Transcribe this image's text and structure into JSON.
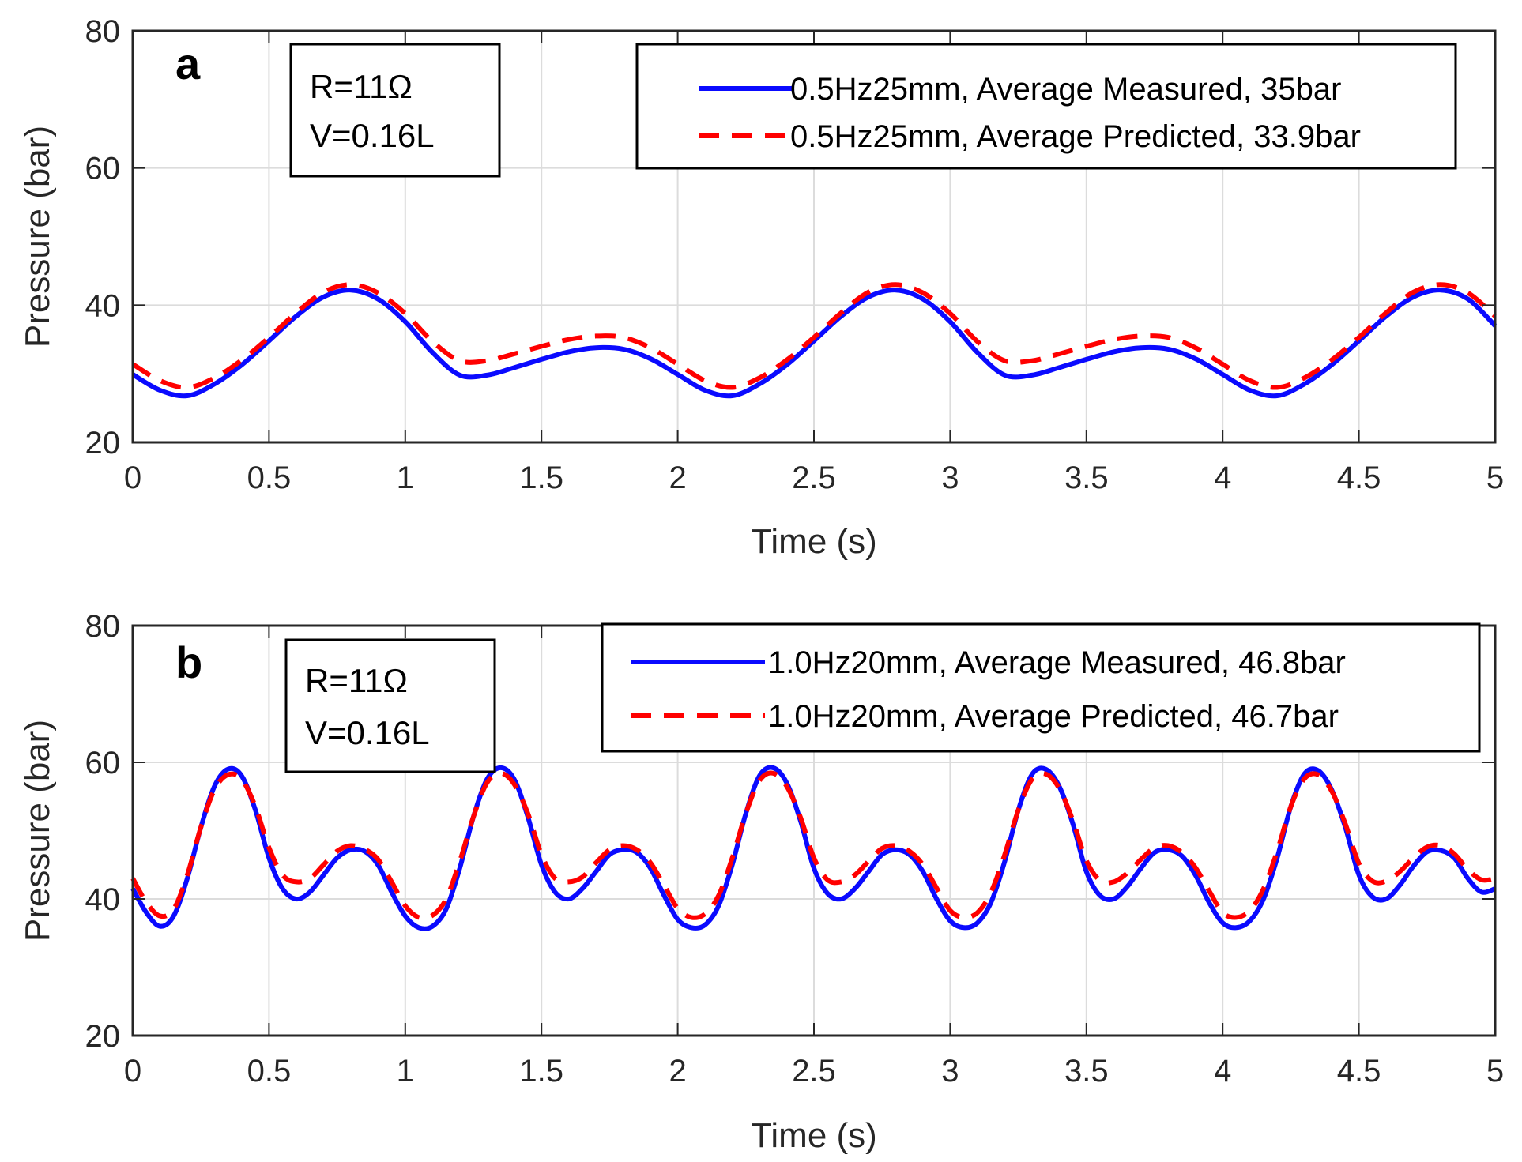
{
  "colors": {
    "measured": "#0a0aff",
    "predicted": "#ff0000",
    "grid": "#dcdcdc",
    "axis": "#262626"
  },
  "chart_data": [
    {
      "panel": "a",
      "type": "line",
      "xlabel": "Time (s)",
      "ylabel": "Pressure (bar)",
      "xlim": [
        0,
        5
      ],
      "ylim": [
        20,
        80
      ],
      "xticks": [
        "0",
        "0.5",
        "1",
        "1.5",
        "2",
        "2.5",
        "3",
        "3.5",
        "4",
        "4.5",
        "5"
      ],
      "yticks": [
        "20",
        "40",
        "60",
        "80"
      ],
      "grid": true,
      "legend_position": "top-right",
      "annotation": [
        "R=11Ω",
        "V=0.16L"
      ],
      "series": [
        {
          "name": "0.5Hz25mm, Average Measured, 35bar",
          "style": "solid",
          "x": [
            0,
            0.1,
            0.2,
            0.3,
            0.4,
            0.5,
            0.6,
            0.7,
            0.8,
            0.9,
            1.0,
            1.1,
            1.2,
            1.3,
            1.4,
            1.5,
            1.6,
            1.7,
            1.8,
            1.9,
            2.0,
            2.1,
            2.2,
            2.3,
            2.4,
            2.5,
            2.6,
            2.7,
            2.8,
            2.9,
            3.0,
            3.1,
            3.2,
            3.3,
            3.4,
            3.5,
            3.6,
            3.7,
            3.8,
            3.9,
            4.0,
            4.1,
            4.2,
            4.3,
            4.4,
            4.5,
            4.6,
            4.7,
            4.8,
            4.9,
            5.0
          ],
          "values": [
            29.9,
            27.6,
            26.8,
            28.5,
            31.3,
            34.8,
            38.4,
            41.2,
            42.2,
            40.9,
            37.6,
            33.1,
            29.8,
            29.8,
            30.9,
            32.1,
            33.2,
            33.8,
            33.6,
            32.2,
            29.9,
            27.6,
            26.8,
            28.5,
            31.3,
            34.8,
            38.4,
            41.2,
            42.2,
            40.9,
            37.6,
            33.1,
            29.8,
            29.8,
            30.9,
            32.1,
            33.2,
            33.8,
            33.6,
            32.2,
            29.9,
            27.6,
            26.8,
            28.5,
            31.3,
            34.8,
            38.4,
            41.2,
            42.2,
            40.9,
            37.0
          ]
        },
        {
          "name": "0.5Hz25mm, Average Predicted, 33.9bar",
          "style": "dashed",
          "x": [
            0,
            0.1,
            0.2,
            0.3,
            0.4,
            0.5,
            0.6,
            0.7,
            0.8,
            0.9,
            1.0,
            1.1,
            1.2,
            1.3,
            1.4,
            1.5,
            1.6,
            1.7,
            1.8,
            1.9,
            2.0,
            2.1,
            2.2,
            2.3,
            2.4,
            2.5,
            2.6,
            2.7,
            2.8,
            2.9,
            3.0,
            3.1,
            3.2,
            3.3,
            3.4,
            3.5,
            3.6,
            3.7,
            3.8,
            3.9,
            4.0,
            4.1,
            4.2,
            4.3,
            4.4,
            4.5,
            4.6,
            4.7,
            4.8,
            4.9,
            5.0
          ],
          "values": [
            31.4,
            29.0,
            28.0,
            29.4,
            32.0,
            35.3,
            38.9,
            41.9,
            43.0,
            41.8,
            38.8,
            34.7,
            31.9,
            31.9,
            32.9,
            34.0,
            35.0,
            35.5,
            35.3,
            33.8,
            31.4,
            29.0,
            28.0,
            29.4,
            32.0,
            35.3,
            38.9,
            41.9,
            43.0,
            41.8,
            38.8,
            34.7,
            31.9,
            31.9,
            32.9,
            34.0,
            35.0,
            35.5,
            35.3,
            33.8,
            31.4,
            29.0,
            28.0,
            29.4,
            32.0,
            35.3,
            38.9,
            41.9,
            43.0,
            41.8,
            38.4
          ]
        }
      ]
    },
    {
      "panel": "b",
      "type": "line",
      "xlabel": "Time (s)",
      "ylabel": "Pressure (bar)",
      "xlim": [
        0,
        5
      ],
      "ylim": [
        20,
        80
      ],
      "xticks": [
        "0",
        "0.5",
        "1",
        "1.5",
        "2",
        "2.5",
        "3",
        "3.5",
        "4",
        "4.5",
        "5"
      ],
      "yticks": [
        "20",
        "40",
        "60",
        "80"
      ],
      "grid": true,
      "legend_position": "top-right",
      "annotation": [
        "R=11Ω",
        "V=0.16L"
      ],
      "series": [
        {
          "name": "1.0Hz20mm, Average Measured, 46.8bar",
          "style": "solid",
          "x": [
            0,
            0.05,
            0.1,
            0.15,
            0.2,
            0.25,
            0.3,
            0.35,
            0.4,
            0.45,
            0.5,
            0.55,
            0.6,
            0.65,
            0.7,
            0.75,
            0.8,
            0.85,
            0.9,
            0.95,
            1.0,
            1.05,
            1.1,
            1.15,
            1.2,
            1.25,
            1.3,
            1.35,
            1.4,
            1.45,
            1.5,
            1.55,
            1.6,
            1.65,
            1.7,
            1.75,
            1.8,
            1.85,
            1.9,
            1.95,
            2.0,
            2.05,
            2.1,
            2.15,
            2.2,
            2.25,
            2.3,
            2.35,
            2.4,
            2.45,
            2.5,
            2.55,
            2.6,
            2.65,
            2.7,
            2.75,
            2.8,
            2.85,
            2.9,
            2.95,
            3.0,
            3.05,
            3.1,
            3.15,
            3.2,
            3.25,
            3.3,
            3.35,
            3.4,
            3.45,
            3.5,
            3.55,
            3.6,
            3.65,
            3.7,
            3.75,
            3.8,
            3.85,
            3.9,
            3.95,
            4.0,
            4.05,
            4.1,
            4.15,
            4.2,
            4.25,
            4.3,
            4.35,
            4.4,
            4.45,
            4.5,
            4.55,
            4.6,
            4.65,
            4.7,
            4.75,
            4.8,
            4.85,
            4.9,
            4.95,
            5.0
          ],
          "values": [
            41.5,
            38.0,
            36.0,
            37.5,
            43.0,
            50.5,
            56.5,
            59.0,
            58.0,
            53.0,
            46.0,
            41.5,
            40.0,
            41.0,
            43.5,
            46.0,
            47.2,
            47.0,
            45.0,
            41.0,
            37.5,
            35.8,
            36.0,
            38.5,
            44.5,
            52.0,
            57.5,
            59.2,
            57.5,
            52.0,
            45.0,
            41.0,
            40.0,
            41.5,
            44.0,
            46.5,
            47.2,
            46.8,
            44.5,
            40.5,
            37.0,
            35.8,
            36.2,
            39.0,
            45.0,
            52.5,
            58.0,
            59.2,
            57.0,
            51.5,
            44.5,
            40.8,
            40.0,
            41.5,
            44.0,
            46.5,
            47.2,
            46.5,
            44.0,
            40.0,
            36.8,
            35.8,
            36.5,
            39.5,
            45.5,
            53.0,
            58.2,
            59.0,
            56.5,
            51.0,
            44.0,
            40.5,
            40.0,
            41.8,
            44.5,
            46.8,
            47.2,
            46.3,
            43.5,
            39.5,
            36.5,
            35.8,
            36.8,
            40.0,
            46.0,
            53.5,
            58.3,
            58.8,
            56.0,
            50.5,
            43.5,
            40.3,
            40.0,
            42.0,
            44.8,
            46.9,
            47.1,
            46.0,
            43.0,
            41.0,
            41.5
          ]
        },
        {
          "name": "1.0Hz20mm, Average Predicted, 46.7bar",
          "style": "dashed",
          "x": [
            0,
            0.05,
            0.1,
            0.15,
            0.2,
            0.25,
            0.3,
            0.35,
            0.4,
            0.45,
            0.5,
            0.55,
            0.6,
            0.65,
            0.7,
            0.75,
            0.8,
            0.85,
            0.9,
            0.95,
            1.0,
            1.05,
            1.1,
            1.15,
            1.2,
            1.25,
            1.3,
            1.35,
            1.4,
            1.45,
            1.5,
            1.55,
            1.6,
            1.65,
            1.7,
            1.75,
            1.8,
            1.85,
            1.9,
            1.95,
            2.0,
            2.05,
            2.1,
            2.15,
            2.2,
            2.25,
            2.3,
            2.35,
            2.4,
            2.45,
            2.5,
            2.55,
            2.6,
            2.65,
            2.7,
            2.75,
            2.8,
            2.85,
            2.9,
            2.95,
            3.0,
            3.05,
            3.1,
            3.15,
            3.2,
            3.25,
            3.3,
            3.35,
            3.4,
            3.45,
            3.5,
            3.55,
            3.6,
            3.65,
            3.7,
            3.75,
            3.8,
            3.85,
            3.9,
            3.95,
            4.0,
            4.05,
            4.1,
            4.15,
            4.2,
            4.25,
            4.3,
            4.35,
            4.4,
            4.45,
            4.5,
            4.55,
            4.6,
            4.65,
            4.7,
            4.75,
            4.8,
            4.85,
            4.9,
            4.95,
            5.0
          ],
          "values": [
            43.0,
            39.5,
            37.5,
            38.5,
            43.5,
            50.5,
            56.0,
            58.2,
            57.5,
            53.5,
            47.5,
            43.5,
            42.5,
            43.0,
            45.0,
            47.0,
            47.8,
            47.3,
            45.8,
            42.5,
            39.0,
            37.3,
            37.6,
            40.0,
            45.5,
            52.0,
            57.0,
            58.4,
            56.8,
            52.5,
            46.5,
            43.0,
            42.5,
            43.2,
            45.3,
            47.2,
            47.8,
            47.2,
            45.3,
            42.0,
            38.6,
            37.3,
            37.8,
            40.5,
            46.0,
            52.5,
            57.3,
            58.4,
            56.5,
            52.0,
            46.0,
            42.8,
            42.5,
            43.5,
            45.5,
            47.4,
            47.8,
            47.0,
            45.0,
            41.6,
            38.3,
            37.3,
            38.0,
            41.0,
            46.5,
            53.0,
            57.5,
            58.3,
            56.2,
            51.5,
            45.6,
            42.7,
            42.5,
            43.8,
            45.8,
            47.5,
            47.8,
            46.8,
            44.6,
            41.2,
            38.0,
            37.3,
            38.3,
            41.5,
            47.0,
            53.5,
            57.6,
            58.2,
            55.8,
            51.0,
            45.2,
            42.6,
            42.6,
            44.0,
            46.0,
            47.6,
            47.8,
            46.6,
            44.3,
            42.8,
            43.0
          ]
        }
      ]
    }
  ]
}
